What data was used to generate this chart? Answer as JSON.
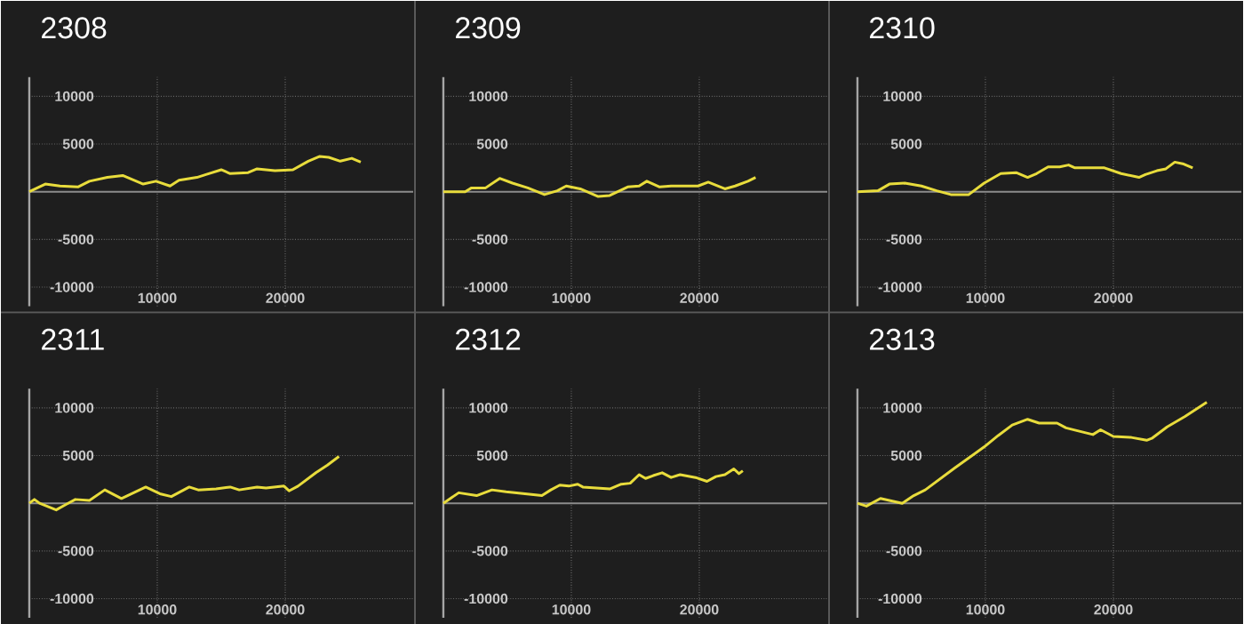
{
  "chart_data": [
    {
      "type": "line",
      "title": "2308",
      "color": "#e8dc3c",
      "grid": true,
      "xlim": [
        0,
        30000
      ],
      "ylim": [
        -12000,
        12000
      ],
      "xticks": [
        10000,
        20000
      ],
      "yticks": [
        -10000,
        -5000,
        5000,
        10000
      ],
      "ref_lines": [
        {
          "axis": "y",
          "value": 0,
          "color": "#8c8c8c"
        }
      ],
      "x": [
        0,
        1250,
        2400,
        3800,
        4700,
        6100,
        7300,
        8900,
        9900,
        11000,
        11700,
        13100,
        13800,
        15000,
        15700,
        17100,
        17800,
        19200,
        20600,
        21800,
        22700,
        23400,
        24300,
        25200,
        25900
      ],
      "values": [
        0,
        800,
        600,
        500,
        1100,
        1500,
        1700,
        800,
        1100,
        600,
        1200,
        1500,
        1800,
        2300,
        1900,
        2000,
        2400,
        2200,
        2300,
        3200,
        3700,
        3600,
        3200,
        3500,
        3100
      ]
    },
    {
      "type": "line",
      "title": "2309",
      "color": "#e8dc3c",
      "grid": true,
      "xlim": [
        0,
        30000
      ],
      "ylim": [
        -12000,
        12000
      ],
      "xticks": [
        10000,
        20000
      ],
      "yticks": [
        -10000,
        -5000,
        5000,
        10000
      ],
      "ref_lines": [
        {
          "axis": "y",
          "value": 0,
          "color": "#8c8c8c"
        }
      ],
      "x": [
        0,
        1700,
        2200,
        3300,
        4400,
        5400,
        6600,
        7900,
        8900,
        9600,
        10700,
        12100,
        13000,
        14400,
        15300,
        15900,
        16900,
        17800,
        19900,
        20700,
        22000,
        22800,
        23800,
        24400
      ],
      "values": [
        0,
        0,
        400,
        400,
        1400,
        900,
        400,
        -300,
        100,
        600,
        300,
        -500,
        -400,
        500,
        600,
        1100,
        500,
        600,
        600,
        1000,
        300,
        600,
        1100,
        1500
      ]
    },
    {
      "type": "line",
      "title": "2310",
      "color": "#e8dc3c",
      "grid": true,
      "xlim": [
        0,
        30000
      ],
      "ylim": [
        -12000,
        12000
      ],
      "xticks": [
        10000,
        20000
      ],
      "yticks": [
        -10000,
        -5000,
        5000,
        10000
      ],
      "ref_lines": [
        {
          "axis": "y",
          "value": 0,
          "color": "#8c8c8c"
        }
      ],
      "x": [
        0,
        1600,
        2500,
        3700,
        5000,
        6200,
        7300,
        8700,
        9900,
        11200,
        12400,
        13300,
        14000,
        14900,
        15800,
        16500,
        17000,
        17900,
        19300,
        20600,
        22000,
        22500,
        23400,
        24100,
        24800,
        25500,
        26200
      ],
      "values": [
        0,
        100,
        800,
        900,
        600,
        100,
        -300,
        -300,
        900,
        1900,
        2000,
        1500,
        1900,
        2600,
        2600,
        2800,
        2500,
        2500,
        2500,
        1900,
        1500,
        1800,
        2200,
        2400,
        3100,
        2900,
        2500
      ]
    },
    {
      "type": "line",
      "title": "2311",
      "color": "#e8dc3c",
      "grid": true,
      "xlim": [
        0,
        30000
      ],
      "ylim": [
        -12000,
        12000
      ],
      "xticks": [
        10000,
        20000
      ],
      "yticks": [
        -10000,
        -5000,
        5000,
        10000
      ],
      "ref_lines": [
        {
          "axis": "y",
          "value": 0,
          "color": "#8c8c8c"
        }
      ],
      "x": [
        0,
        400,
        800,
        2100,
        2900,
        3600,
        4700,
        5900,
        7200,
        9100,
        10200,
        11100,
        12500,
        13200,
        14600,
        15700,
        16400,
        17800,
        18500,
        19900,
        20300,
        21000,
        22400,
        23300,
        24200
      ],
      "values": [
        0,
        400,
        0,
        -700,
        -100,
        400,
        300,
        1400,
        500,
        1700,
        1000,
        700,
        1700,
        1400,
        1500,
        1700,
        1400,
        1700,
        1600,
        1800,
        1300,
        1800,
        3200,
        4000,
        4900
      ]
    },
    {
      "type": "line",
      "title": "2312",
      "color": "#e8dc3c",
      "grid": true,
      "xlim": [
        0,
        30000
      ],
      "ylim": [
        -12000,
        12000
      ],
      "xticks": [
        10000,
        20000
      ],
      "yticks": [
        -10000,
        -5000,
        5000,
        10000
      ],
      "ref_lines": [
        {
          "axis": "y",
          "value": 0,
          "color": "#8c8c8c"
        }
      ],
      "x": [
        0,
        550,
        1200,
        2600,
        3800,
        4900,
        6300,
        7700,
        8400,
        9100,
        9800,
        10500,
        10900,
        13000,
        13900,
        14600,
        15300,
        15800,
        16400,
        17100,
        17800,
        18500,
        19700,
        20600,
        21300,
        22000,
        22700,
        23100,
        23400
      ],
      "values": [
        0,
        500,
        1100,
        800,
        1400,
        1200,
        1000,
        800,
        1400,
        1900,
        1800,
        2000,
        1700,
        1500,
        2000,
        2100,
        3000,
        2600,
        2900,
        3200,
        2700,
        3000,
        2700,
        2300,
        2800,
        3000,
        3600,
        3100,
        3400
      ]
    },
    {
      "type": "line",
      "title": "2313",
      "color": "#e8dc3c",
      "grid": true,
      "xlim": [
        0,
        30000
      ],
      "ylim": [
        -12000,
        12000
      ],
      "xticks": [
        10000,
        20000
      ],
      "yticks": [
        -10000,
        -5000,
        5000,
        10000
      ],
      "ref_lines": [
        {
          "axis": "y",
          "value": 0,
          "color": "#8c8c8c"
        }
      ],
      "x": [
        0,
        700,
        1800,
        3500,
        4400,
        5300,
        7600,
        9900,
        11000,
        12100,
        13300,
        14200,
        15600,
        16300,
        17200,
        18400,
        19000,
        20000,
        21400,
        22600,
        23000,
        24200,
        25600,
        27300
      ],
      "values": [
        0,
        -300,
        500,
        0,
        800,
        1400,
        3700,
        5900,
        7100,
        8200,
        8800,
        8400,
        8400,
        7900,
        7600,
        7200,
        7700,
        7000,
        6900,
        6600,
        6800,
        8000,
        9100,
        10600
      ]
    }
  ]
}
